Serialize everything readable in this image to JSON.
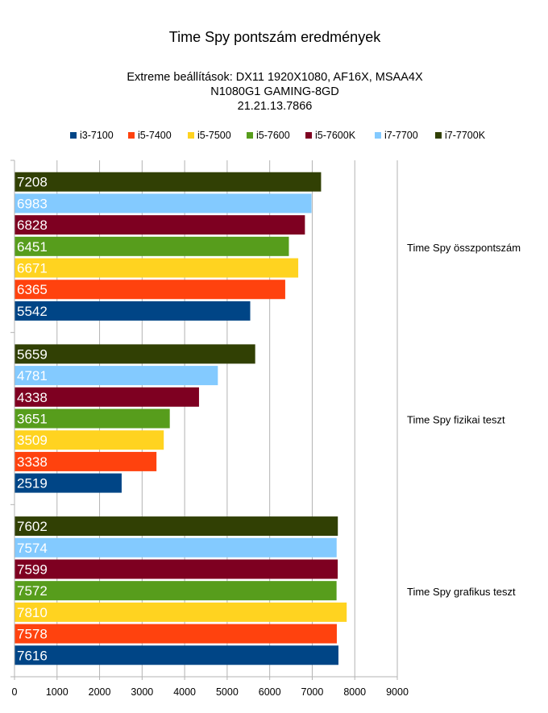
{
  "chart_data": {
    "type": "bar",
    "orientation": "horizontal",
    "title": "Time Spy pontszám eredmények",
    "subtitle_lines": [
      "Extreme beállítások: DX11 1920X1080, AF16X, MSAA4X",
      "N1080G1 GAMING-8GD",
      "21.21.13.7866"
    ],
    "categories": [
      "Time Spy összpontszám",
      "Time Spy fizikai teszt",
      "Time Spy grafikus teszt"
    ],
    "series": [
      {
        "name": "i3-7100",
        "color": "#004586",
        "values": [
          5542,
          2519,
          7616
        ]
      },
      {
        "name": "i5-7400",
        "color": "#ff420e",
        "values": [
          6365,
          3338,
          7578
        ]
      },
      {
        "name": "i5-7500",
        "color": "#ffd320",
        "values": [
          6671,
          3509,
          7810
        ]
      },
      {
        "name": "i5-7600",
        "color": "#579d1c",
        "values": [
          6451,
          3651,
          7572
        ]
      },
      {
        "name": "i5-7600K",
        "color": "#7e0021",
        "values": [
          6828,
          4338,
          7599
        ]
      },
      {
        "name": "i7-7700",
        "color": "#83caff",
        "values": [
          6983,
          4781,
          7574
        ]
      },
      {
        "name": "i7-7700K",
        "color": "#314004",
        "values": [
          7208,
          5659,
          7602
        ]
      }
    ],
    "xlim": [
      0,
      9000
    ],
    "xticks": [
      "0",
      "1000",
      "2000",
      "3000",
      "4000",
      "5000",
      "6000",
      "7000",
      "8000",
      "9000"
    ],
    "grid": true,
    "legend_position": "top",
    "data_labels": true
  }
}
